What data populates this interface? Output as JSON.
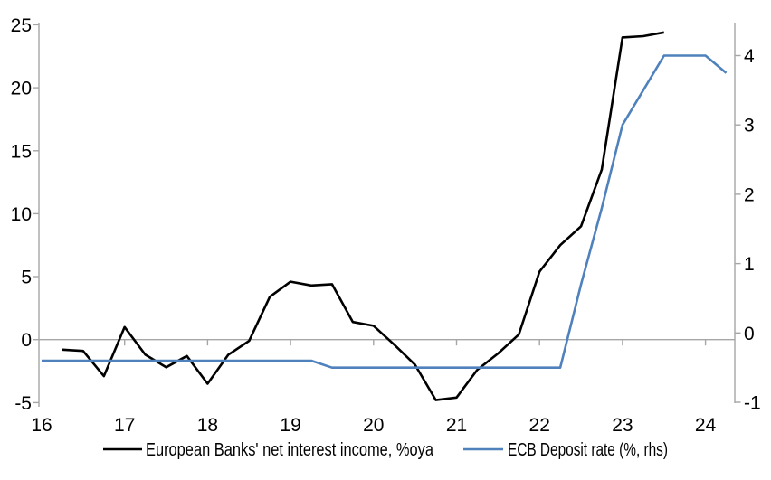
{
  "chart_data": {
    "type": "line",
    "title": "",
    "xlabel": "",
    "ylabel_left": "",
    "ylabel_right": "",
    "grid": "zero-line-only",
    "legend_position": "bottom-center",
    "x_axis": {
      "tick_values": [
        16,
        17,
        18,
        19,
        20,
        21,
        22,
        23,
        24
      ],
      "tick_labels": [
        "16",
        "17",
        "18",
        "19",
        "20",
        "21",
        "22",
        "23",
        "24"
      ]
    },
    "left_axis": {
      "range": [
        -5,
        25
      ],
      "tick_values": [
        -5,
        0,
        5,
        10,
        15,
        20,
        25
      ],
      "tick_labels": [
        "-5",
        "0",
        "5",
        "10",
        "15",
        "20",
        "25"
      ]
    },
    "right_axis": {
      "range": [
        -1.05,
        4.45
      ],
      "tick_values": [
        -1,
        0,
        1,
        2,
        3,
        4
      ],
      "tick_labels": [
        "-1",
        "0",
        "1",
        "2",
        "3",
        "4"
      ]
    },
    "series": [
      {
        "name": "European Banks' net interest income, %oya",
        "axis": "left",
        "color": "#000000",
        "points": [
          [
            16.25,
            -0.8
          ],
          [
            16.5,
            -0.9
          ],
          [
            16.75,
            -2.9
          ],
          [
            17.0,
            1.0
          ],
          [
            17.25,
            -1.2
          ],
          [
            17.5,
            -2.2
          ],
          [
            17.75,
            -1.3
          ],
          [
            18.0,
            -3.5
          ],
          [
            18.25,
            -1.2
          ],
          [
            18.5,
            -0.1
          ],
          [
            18.75,
            3.4
          ],
          [
            19.0,
            4.6
          ],
          [
            19.25,
            4.3
          ],
          [
            19.5,
            4.4
          ],
          [
            19.75,
            1.4
          ],
          [
            20.0,
            1.1
          ],
          [
            20.25,
            -0.4
          ],
          [
            20.5,
            -2.0
          ],
          [
            20.75,
            -4.8
          ],
          [
            21.0,
            -4.6
          ],
          [
            21.25,
            -2.4
          ],
          [
            21.5,
            -1.1
          ],
          [
            21.75,
            0.4
          ],
          [
            22.0,
            5.4
          ],
          [
            22.25,
            7.5
          ],
          [
            22.5,
            9.0
          ],
          [
            22.75,
            13.5
          ],
          [
            23.0,
            24.0
          ],
          [
            23.25,
            24.1
          ],
          [
            23.5,
            24.4
          ]
        ]
      },
      {
        "name": "ECB Deposit rate (%, rhs)",
        "axis": "right",
        "color": "#4f81bd",
        "points": [
          [
            16.0,
            -0.4
          ],
          [
            16.25,
            -0.4
          ],
          [
            16.5,
            -0.4
          ],
          [
            16.75,
            -0.4
          ],
          [
            17.0,
            -0.4
          ],
          [
            17.25,
            -0.4
          ],
          [
            17.5,
            -0.4
          ],
          [
            17.75,
            -0.4
          ],
          [
            18.0,
            -0.4
          ],
          [
            18.25,
            -0.4
          ],
          [
            18.5,
            -0.4
          ],
          [
            18.75,
            -0.4
          ],
          [
            19.0,
            -0.4
          ],
          [
            19.25,
            -0.4
          ],
          [
            19.5,
            -0.5
          ],
          [
            19.75,
            -0.5
          ],
          [
            20.0,
            -0.5
          ],
          [
            20.25,
            -0.5
          ],
          [
            20.5,
            -0.5
          ],
          [
            20.75,
            -0.5
          ],
          [
            21.0,
            -0.5
          ],
          [
            21.25,
            -0.5
          ],
          [
            21.5,
            -0.5
          ],
          [
            21.75,
            -0.5
          ],
          [
            22.0,
            -0.5
          ],
          [
            22.25,
            -0.5
          ],
          [
            22.5,
            0.7
          ],
          [
            22.75,
            1.8
          ],
          [
            23.0,
            3.0
          ],
          [
            23.25,
            3.5
          ],
          [
            23.5,
            4.0
          ],
          [
            23.75,
            4.0
          ],
          [
            24.0,
            4.0
          ],
          [
            24.25,
            3.75
          ]
        ]
      }
    ]
  },
  "colors": {
    "background": "#ffffff",
    "axis_line": "#a6a6a6",
    "zero_line": "#a6a6a6",
    "text": "#000000",
    "series_black": "#000000",
    "series_blue": "#4f81bd"
  }
}
